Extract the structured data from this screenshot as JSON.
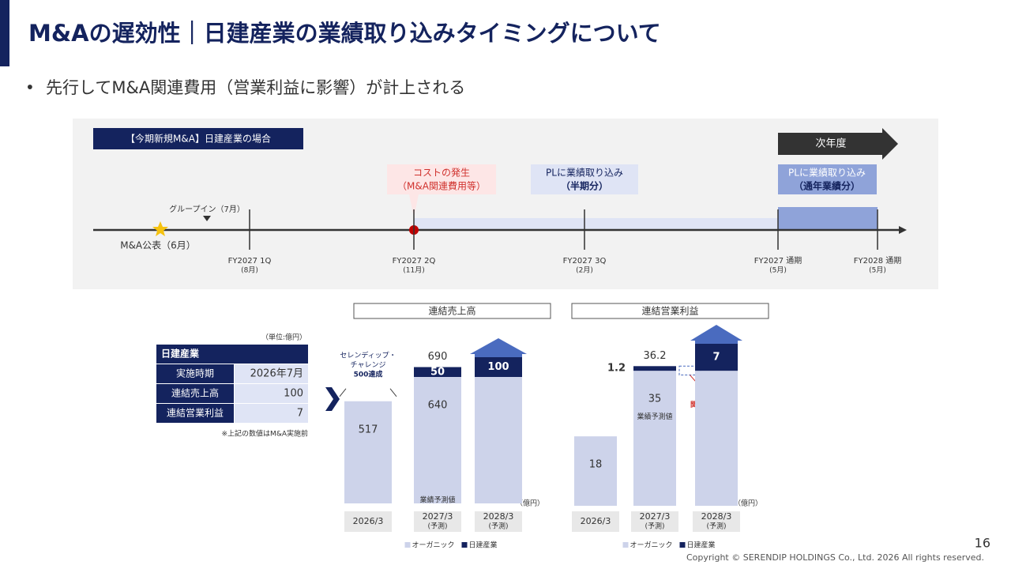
{
  "header": {
    "title": "M&Aの遅効性｜日建産業の業績取り込みタイミングについて",
    "bullet": "先行してM&A関連費用（営業利益に影響）が計上される"
  },
  "timeline": {
    "case_label": "【今期新規M&A】日建産業の場合",
    "next_year": "次年度",
    "announce": "M&A公表（6月）",
    "group_in": "グループイン（7月）",
    "cost_box": [
      "コストの発生",
      "（M&A関連費用等）"
    ],
    "half_box": [
      "PLに業績取り込み",
      "（半期分）"
    ],
    "full_box": [
      "PLに業績取り込み",
      "（通年業績分）"
    ],
    "ticks": [
      {
        "label": "FY2027 1Q",
        "sub": "(8月)"
      },
      {
        "label": "FY2027 2Q",
        "sub": "(11月)"
      },
      {
        "label": "FY2027 3Q",
        "sub": "(2月)"
      },
      {
        "label": "FY2027 通期",
        "sub": "(5月)"
      },
      {
        "label": "FY2028 通期",
        "sub": "(5月)"
      }
    ]
  },
  "table": {
    "unit": "（単位:億円）",
    "title": "日建産業",
    "rows": [
      [
        "実施時期",
        "2026年7月"
      ],
      [
        "連結売上高",
        "100"
      ],
      [
        "連結営業利益",
        "7"
      ]
    ],
    "note": "※上記の数値はM&A実施前"
  },
  "chart_data": [
    {
      "type": "bar",
      "title": "連結売上高",
      "unit": "（億円）",
      "categories": [
        "2026/3",
        "2027/3",
        "2028/3"
      ],
      "category_notes": [
        null,
        "(予測)",
        "(予測)"
      ],
      "series": [
        {
          "name": "オーガニック",
          "color": "#cdd3ea",
          "values": [
            517,
            640,
            640
          ],
          "value_labels": [
            "517",
            "640",
            null
          ]
        },
        {
          "name": "日建産業",
          "color": "#14235e",
          "values": [
            null,
            50,
            100
          ],
          "value_labels": [
            null,
            "50",
            "100"
          ]
        }
      ],
      "totals": [
        null,
        690,
        null
      ],
      "annotation": "業績予測値",
      "callout": [
        "セレンディップ・",
        "チャレンジ",
        "500達成"
      ]
    },
    {
      "type": "bar",
      "title": "連結営業利益",
      "unit": "（億円）",
      "categories": [
        "2026/3",
        "2027/3",
        "2028/3"
      ],
      "category_notes": [
        null,
        "(予測)",
        "(予測)"
      ],
      "series": [
        {
          "name": "オーガニック",
          "color": "#cdd3ea",
          "values": [
            18,
            35,
            35
          ],
          "value_labels": [
            "18",
            "35",
            null
          ]
        },
        {
          "name": "日建産業",
          "color": "#14235e",
          "values": [
            null,
            1.2,
            7
          ],
          "value_labels": [
            null,
            "1.2",
            "7"
          ]
        }
      ],
      "totals": [
        null,
        36.2,
        null
      ],
      "annotation": "業績予測値",
      "cost": {
        "label": [
          "M&A",
          "関連費用"
        ],
        "value": 2.3
      }
    }
  ],
  "footer": {
    "page": "16",
    "copyright": "Copyright © SERENDIP HOLDINGS Co., Ltd.  2026 All rights reserved."
  }
}
